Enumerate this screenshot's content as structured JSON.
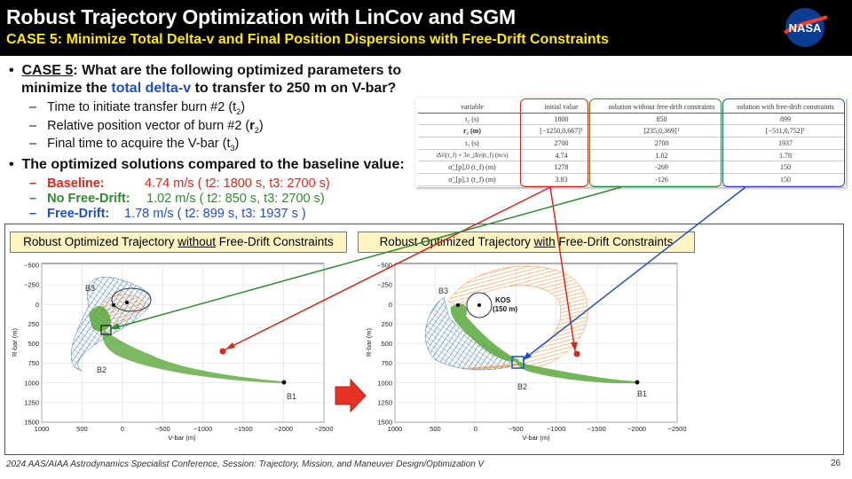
{
  "header": {
    "title": "Robust Trajectory Optimization with LinCov and SGM",
    "subtitle": "CASE 5:  Minimize Total Delta-v and Final Position Dispersions with Free-Drift Constraints",
    "logo_text": "NASA"
  },
  "bullets": {
    "q_label": "CASE 5",
    "q_rest": ":  What are the following optimized parameters to",
    "q_line2a": "minimize the ",
    "q_line2b": "total delta-v",
    "q_line2c": " to transfer to 250 m on V-bar?",
    "sub1": "Time to initiate transfer burn #2 (t",
    "sub1_sub": "2",
    "sub2": "Relative position vector of burn #2 (",
    "sub2_r": "r",
    "sub2_sub": "2",
    "sub3": "Final time to acquire the V-bar (t",
    "sub3_sub": "3",
    "b2": "The optimized solutions compared to the baseline value:",
    "baseline_label": "Baseline:",
    "baseline_val": "4.74 m/s  ( t2: 1800 s, t3: 2700 s)",
    "nofd_label": "No Free-Drift:",
    "nofd_val": "1.02 m/s   ( t2: 850 s,   t3: 2700 s)",
    "fd_label": "Free-Drift:",
    "fd_val": "1.78 m/s   ( t2: 899 s,    t3: 1937 s )"
  },
  "table": {
    "headers": [
      "variable",
      "initial value",
      "solution without free-drift constraints",
      "solution with free-drift constraints"
    ],
    "rows": [
      [
        "t₂ (s)",
        "1800",
        "850",
        "899"
      ],
      [
        "r₂ (m)",
        "[−1250,0,667]ᵀ",
        "[235,0,369]ᵀ",
        "[−511,0,752]ᵀ"
      ],
      [
        "t₃ (s)",
        "2700",
        "2700",
        "1937"
      ],
      [
        "|Δv̄|(t_f) + 3σ_|Δv|(t_f) (m/s)",
        "4.74",
        "1.02",
        "1.78"
      ],
      [
        "σ̃_[p],0 (t_f) (m)",
        "1278",
        "-269",
        "150"
      ],
      [
        "σ̃_[p],1 (t_f) (m)",
        "3.83",
        "-126",
        "150"
      ]
    ]
  },
  "panels": {
    "left_title_a": "Robust Optimized Trajectory ",
    "left_title_b": "without",
    "left_title_c": " Free-Drift Constraints",
    "right_title_a": "Robust Optimized Trajectory ",
    "right_title_b": "with",
    "right_title_c": " Free-Drift Constraints"
  },
  "plots": {
    "xlabel": "V-bar (m)",
    "ylabel": "R-bar (m)",
    "xticks": [
      "1000",
      "500",
      "0",
      "−500",
      "−1000",
      "−1500",
      "−2000",
      "−2500"
    ],
    "yticks": [
      "−500",
      "−250",
      "0",
      "250",
      "500",
      "750",
      "1000",
      "1250",
      "1500"
    ],
    "left_labels": {
      "b1": "B1",
      "b2": "B2",
      "b3": "B3"
    },
    "right_labels": {
      "b1": "B1",
      "b2": "B2",
      "b3": "B3",
      "kos": "KOS",
      "kos_range": "(150 m)"
    }
  },
  "colors": {
    "blue": "#1f4fbf",
    "green": "#2e8b2e",
    "red": "#d42a1a",
    "orange": "#f28a2e",
    "traj_blue": "#3b72b5",
    "traj_green": "#5aa83c",
    "yellow": "#ffea00"
  },
  "footer": "2024 AAS/AIAA Astrodynamics Specialist Conference, Session: Trajectory, Mission, and Maneuver Design/Optimization V",
  "page_number": "26"
}
